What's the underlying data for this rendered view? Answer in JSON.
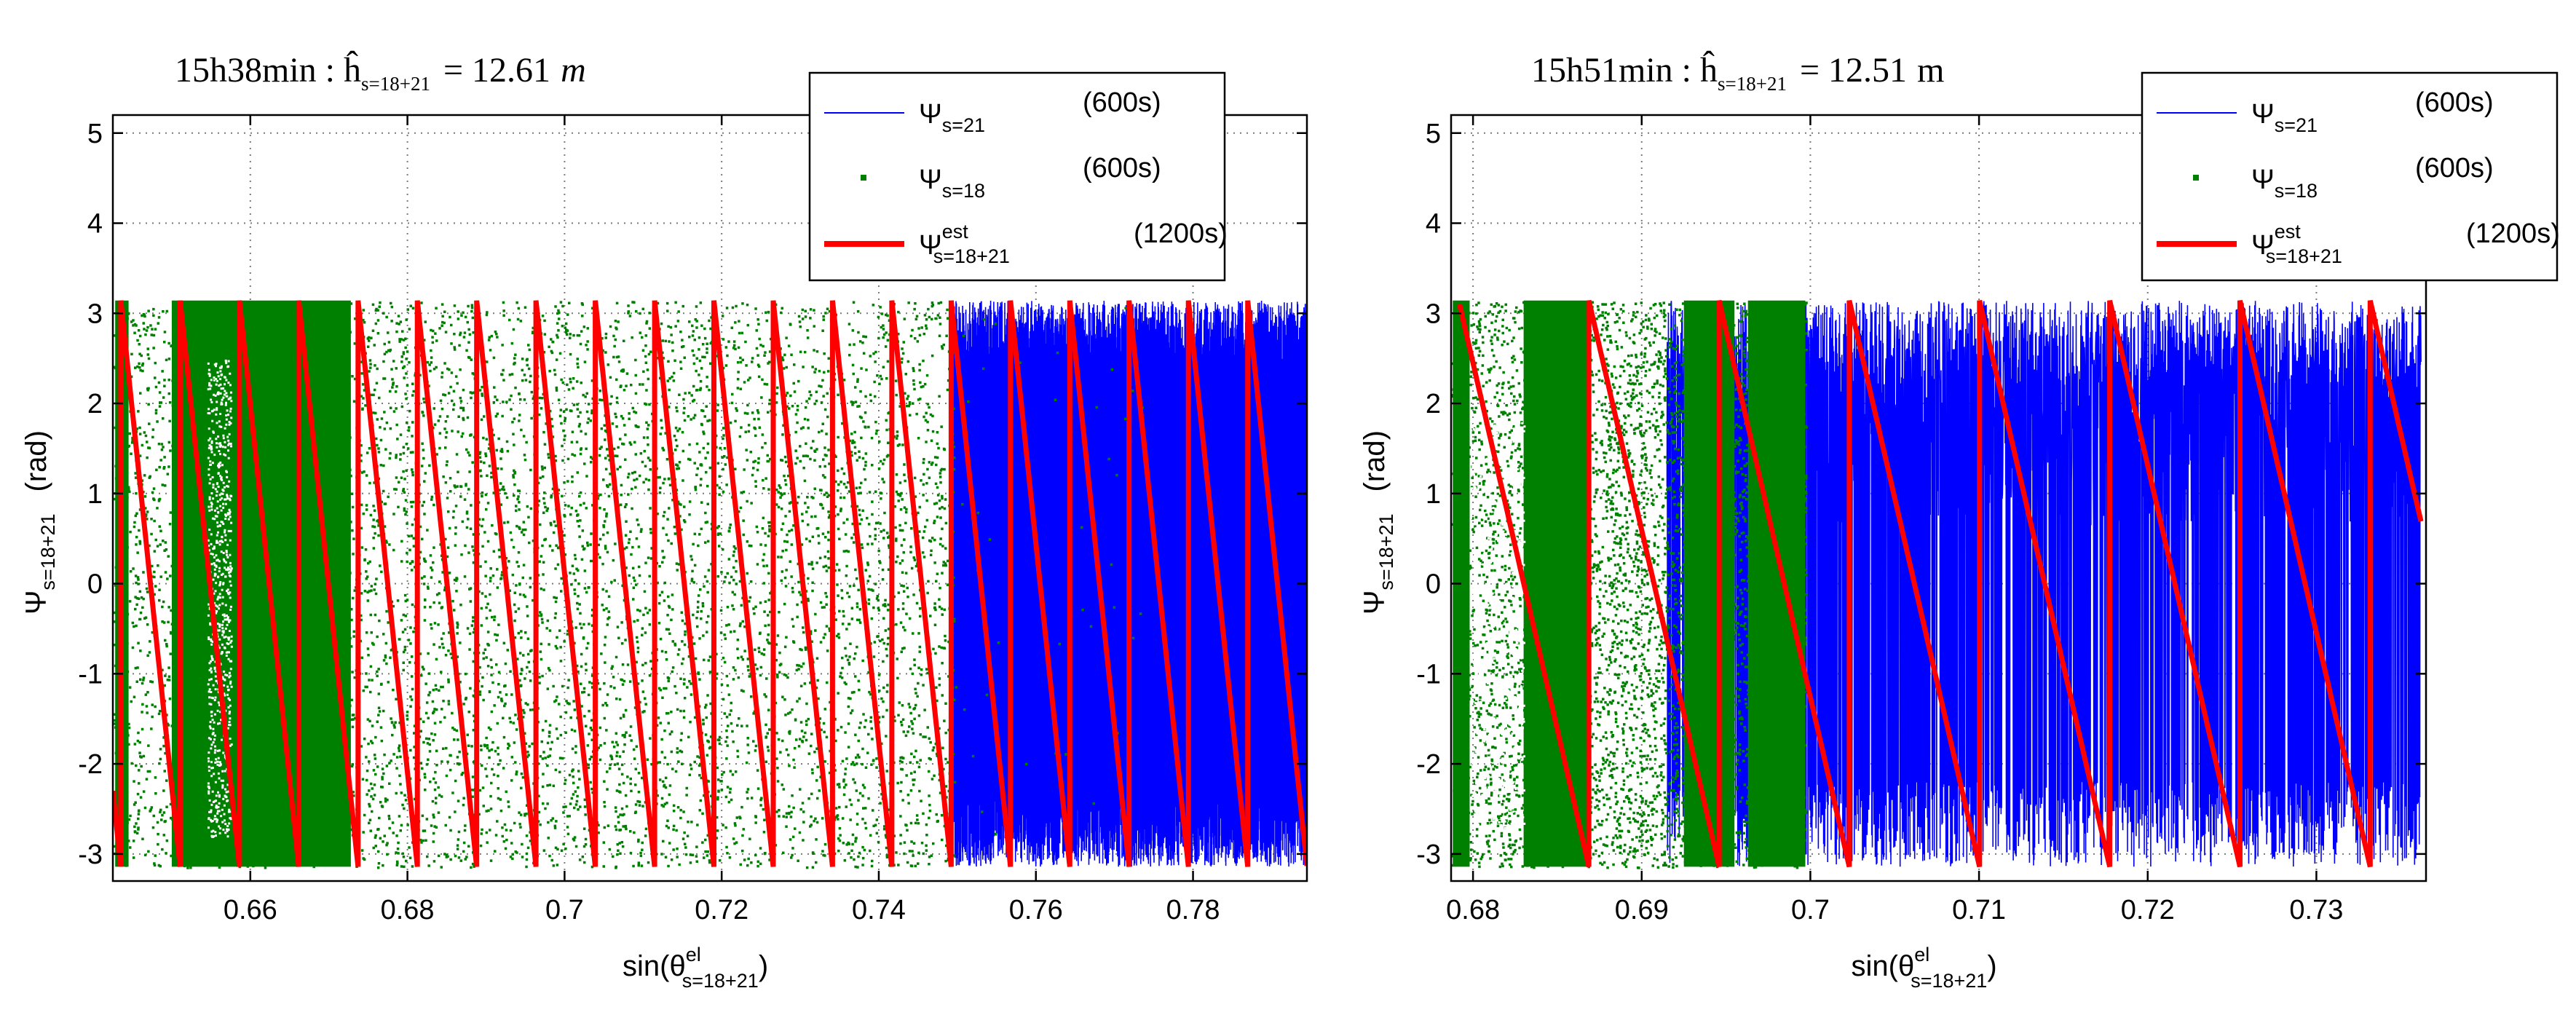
{
  "chart_data": [
    {
      "type": "scatter",
      "title": "15h38min : ĥ",
      "title_subscript": "s=18+21",
      "title_value": "= 12.61",
      "title_unit": "m",
      "xlabel": "sin(θ",
      "xlabel_sup": "el",
      "xlabel_sub": "s=18+21",
      "xlabel_close": ")",
      "ylabel": "Ψ",
      "ylabel_sub": "s=18+21",
      "ylabel_unit": "(rad)",
      "xlim": [
        0.6425,
        0.7945
      ],
      "ylim": [
        -3.3,
        5.2
      ],
      "xticks": [
        0.66,
        0.68,
        0.7,
        0.72,
        0.74,
        0.76,
        0.78
      ],
      "xtick_labels": [
        "0.66",
        "0.68",
        "0.7",
        "0.72",
        "0.74",
        "0.76",
        "0.78"
      ],
      "yticks": [
        -3,
        -2,
        -1,
        0,
        1,
        2,
        3,
        4,
        5
      ],
      "ytick_labels": [
        "-3",
        "-2",
        "-1",
        "0",
        "1",
        "2",
        "3",
        "4",
        "5"
      ],
      "grid": true,
      "legend_position": "top-right",
      "series": [
        {
          "name": "Ψ",
          "sub": "s=21",
          "sup": "",
          "duration": "(600s)",
          "style": "line",
          "color": "#0000ff",
          "x_range": [
            0.7495,
            0.7945
          ],
          "y_range": [
            -3.14159,
            3.14159
          ]
        },
        {
          "name": "Ψ",
          "sub": "s=18",
          "sup": "",
          "duration": "(600s)",
          "style": "dots",
          "color": "#008000",
          "x_range": [
            0.6425,
            0.7735
          ],
          "y_range": [
            -3.14159,
            3.14159
          ]
        },
        {
          "name": "Ψ",
          "sub": "s=18+21",
          "sup": "est",
          "duration": "(1200s)",
          "style": "wrapped-line",
          "color": "#ff0000",
          "x_start": 0.6425,
          "x_end": 0.7945,
          "period": 0.00755,
          "phase_at_start": -2.3,
          "direction": "descending"
        }
      ]
    },
    {
      "type": "scatter",
      "title": "15h51min : ĥ",
      "title_subscript": "s=18+21",
      "title_value": "= 12.51",
      "title_unit": "m",
      "xlabel": "sin(θ",
      "xlabel_sup": "el",
      "xlabel_sub": "s=18+21",
      "xlabel_close": ")",
      "ylabel": "Ψ",
      "ylabel_sub": "s=18+21",
      "ylabel_unit": "(rad)",
      "xlim": [
        0.6787,
        0.7365
      ],
      "ylim": [
        -3.3,
        5.2
      ],
      "xticks": [
        0.68,
        0.69,
        0.7,
        0.71,
        0.72,
        0.73
      ],
      "xtick_labels": [
        "0.68",
        "0.69",
        "0.7",
        "0.71",
        "0.72",
        "0.73"
      ],
      "yticks": [
        -3,
        -2,
        -1,
        0,
        1,
        2,
        3,
        4,
        5
      ],
      "ytick_labels": [
        "-3",
        "-2",
        "-1",
        "0",
        "1",
        "2",
        "3",
        "4",
        "5"
      ],
      "grid": true,
      "legend_position": "top-right",
      "series": [
        {
          "name": "Ψ",
          "sub": "s=21",
          "sup": "",
          "duration": "(600s)",
          "style": "line",
          "color": "#0000ff",
          "x_range": [
            0.6915,
            0.7362
          ],
          "y_range": [
            -3.14159,
            3.14159
          ]
        },
        {
          "name": "Ψ",
          "sub": "s=18",
          "sup": "",
          "duration": "(600s)",
          "style": "dots",
          "color": "#008000",
          "x_range": [
            0.6787,
            0.6997
          ],
          "y_range": [
            -3.14159,
            3.14159
          ]
        },
        {
          "name": "Ψ",
          "sub": "s=18+21",
          "sup": "est",
          "duration": "(1200s)",
          "style": "wrapped-line",
          "color": "#ff0000",
          "x_start": 0.6792,
          "x_end": 0.7362,
          "period": 0.00772,
          "phase_at_start": 3.1,
          "direction": "descending"
        }
      ]
    }
  ]
}
